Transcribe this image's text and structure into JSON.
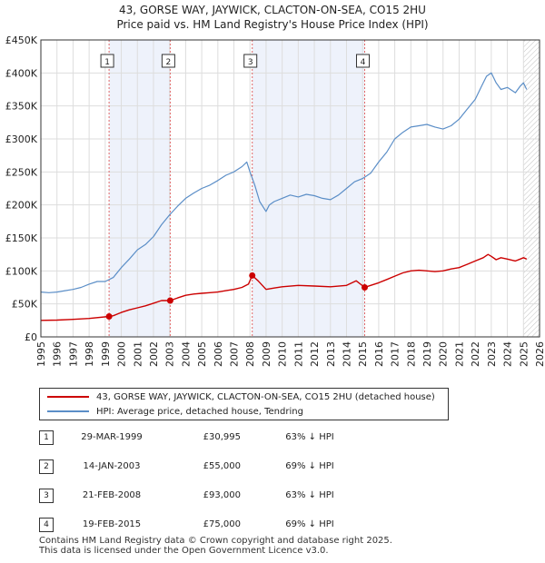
{
  "header": {
    "title_line1": "43, GORSE WAY, JAYWICK, CLACTON-ON-SEA, CO15 2HU",
    "title_line2": "Price paid vs. HM Land Registry's House Price Index (HPI)"
  },
  "colors": {
    "price_line": "#cc0000",
    "hpi_line": "#5b8ec7",
    "shade": "#eef2fb",
    "grid": "#dddddd",
    "marker_line": "#e06666",
    "future_hatch": "#999999"
  },
  "legend": {
    "items": [
      {
        "label": "43, GORSE WAY, JAYWICK, CLACTON-ON-SEA, CO15 2HU (detached house)",
        "color": "#cc0000"
      },
      {
        "label": "HPI: Average price, detached house, Tendring",
        "color": "#5b8ec7"
      }
    ]
  },
  "sales": [
    {
      "num": "1",
      "date": "29-MAR-1999",
      "price": "£30,995",
      "hpi": "63% ↓ HPI"
    },
    {
      "num": "2",
      "date": "14-JAN-2003",
      "price": "£55,000",
      "hpi": "69% ↓ HPI"
    },
    {
      "num": "3",
      "date": "21-FEB-2008",
      "price": "£93,000",
      "hpi": "63% ↓ HPI"
    },
    {
      "num": "4",
      "date": "19-FEB-2015",
      "price": "£75,000",
      "hpi": "69% ↓ HPI"
    }
  ],
  "footer": {
    "line1": "Contains HM Land Registry data © Crown copyright and database right 2025.",
    "line2": "This data is licensed under the Open Government Licence v3.0."
  },
  "chart_data": {
    "type": "line",
    "title": "43, GORSE WAY, JAYWICK, CLACTON-ON-SEA, CO15 2HU",
    "subtitle": "Price paid vs. HM Land Registry's House Price Index (HPI)",
    "xlabel": "",
    "ylabel": "",
    "xlim": [
      1995,
      2026
    ],
    "ylim": [
      0,
      450000
    ],
    "x_ticks": [
      1995,
      1996,
      1997,
      1998,
      1999,
      2000,
      2001,
      2002,
      2003,
      2004,
      2005,
      2006,
      2007,
      2008,
      2009,
      2010,
      2011,
      2012,
      2013,
      2014,
      2015,
      2016,
      2017,
      2018,
      2019,
      2020,
      2021,
      2022,
      2023,
      2024,
      2025,
      2026
    ],
    "y_ticks": [
      {
        "value": 0,
        "label": "£0"
      },
      {
        "value": 50000,
        "label": "£50K"
      },
      {
        "value": 100000,
        "label": "£100K"
      },
      {
        "value": 150000,
        "label": "£150K"
      },
      {
        "value": 200000,
        "label": "£200K"
      },
      {
        "value": 250000,
        "label": "£250K"
      },
      {
        "value": 300000,
        "label": "£300K"
      },
      {
        "value": 350000,
        "label": "£350K"
      },
      {
        "value": 400000,
        "label": "£400K"
      },
      {
        "value": 450000,
        "label": "£450K"
      }
    ],
    "grid": true,
    "future_from": 2025.0,
    "shaded_ranges": [
      [
        1999.24,
        2003.04
      ],
      [
        2008.14,
        2015.13
      ]
    ],
    "sale_markers": [
      {
        "label": "1",
        "x": 1999.24,
        "y": 30995
      },
      {
        "label": "2",
        "x": 2003.04,
        "y": 55000
      },
      {
        "label": "3",
        "x": 2008.14,
        "y": 93000
      },
      {
        "label": "4",
        "x": 2015.13,
        "y": 75000
      }
    ],
    "series": [
      {
        "name": "HPI: Average price, detached house, Tendring",
        "color": "#5b8ec7",
        "x": [
          1995.0,
          1995.5,
          1996.0,
          1996.5,
          1997.0,
          1997.5,
          1998.0,
          1998.5,
          1999.0,
          1999.5,
          2000.0,
          2000.5,
          2001.0,
          2001.5,
          2002.0,
          2002.5,
          2003.0,
          2003.5,
          2004.0,
          2004.5,
          2005.0,
          2005.5,
          2006.0,
          2006.5,
          2007.0,
          2007.5,
          2007.8,
          2008.0,
          2008.3,
          2008.6,
          2009.0,
          2009.2,
          2009.5,
          2010.0,
          2010.5,
          2011.0,
          2011.5,
          2012.0,
          2012.5,
          2013.0,
          2013.5,
          2014.0,
          2014.5,
          2015.0,
          2015.5,
          2016.0,
          2016.5,
          2017.0,
          2017.5,
          2018.0,
          2018.5,
          2019.0,
          2019.5,
          2020.0,
          2020.5,
          2021.0,
          2021.5,
          2022.0,
          2022.4,
          2022.7,
          2023.0,
          2023.3,
          2023.6,
          2024.0,
          2024.5,
          2024.8,
          2025.0,
          2025.2
        ],
        "values": [
          68000,
          67000,
          68000,
          70000,
          72000,
          75000,
          80000,
          84000,
          84000,
          90000,
          105000,
          118000,
          132000,
          140000,
          152000,
          170000,
          185000,
          198000,
          210000,
          218000,
          225000,
          230000,
          237000,
          245000,
          250000,
          258000,
          265000,
          250000,
          230000,
          205000,
          190000,
          200000,
          205000,
          210000,
          215000,
          212000,
          216000,
          214000,
          210000,
          208000,
          215000,
          225000,
          235000,
          240000,
          248000,
          265000,
          280000,
          300000,
          310000,
          318000,
          320000,
          322000,
          318000,
          315000,
          320000,
          330000,
          345000,
          360000,
          380000,
          395000,
          400000,
          385000,
          375000,
          378000,
          370000,
          380000,
          385000,
          375000
        ]
      },
      {
        "name": "43, GORSE WAY, JAYWICK, CLACTON-ON-SEA, CO15 2HU (detached house)",
        "color": "#cc0000",
        "x": [
          1995.0,
          1996.0,
          1997.0,
          1998.0,
          1999.24,
          1999.5,
          2000.0,
          2000.5,
          2001.0,
          2001.5,
          2002.0,
          2002.5,
          2003.04,
          2003.5,
          2004.0,
          2004.5,
          2005.0,
          2005.5,
          2006.0,
          2006.5,
          2007.0,
          2007.5,
          2007.9,
          2008.14,
          2008.5,
          2009.0,
          2009.5,
          2010.0,
          2011.0,
          2012.0,
          2013.0,
          2014.0,
          2014.6,
          2015.13,
          2015.5,
          2016.0,
          2016.5,
          2017.0,
          2017.5,
          2018.0,
          2018.5,
          2019.0,
          2019.5,
          2020.0,
          2020.5,
          2021.0,
          2021.5,
          2022.0,
          2022.5,
          2022.8,
          2023.0,
          2023.3,
          2023.6,
          2024.0,
          2024.5,
          2024.8,
          2025.0,
          2025.2
        ],
        "values": [
          25000,
          25500,
          26500,
          28000,
          30995,
          32000,
          37000,
          41000,
          44000,
          47000,
          51000,
          55000,
          55000,
          59000,
          63000,
          65000,
          66000,
          67000,
          68000,
          70000,
          72000,
          75000,
          80000,
          93000,
          85000,
          72000,
          74000,
          76000,
          78000,
          77000,
          76000,
          78000,
          85000,
          75000,
          78000,
          82000,
          87000,
          92000,
          97000,
          100000,
          101000,
          100000,
          99000,
          100000,
          103000,
          105000,
          110000,
          115000,
          120000,
          125000,
          122000,
          117000,
          120000,
          118000,
          115000,
          118000,
          120000,
          118000
        ]
      }
    ]
  }
}
